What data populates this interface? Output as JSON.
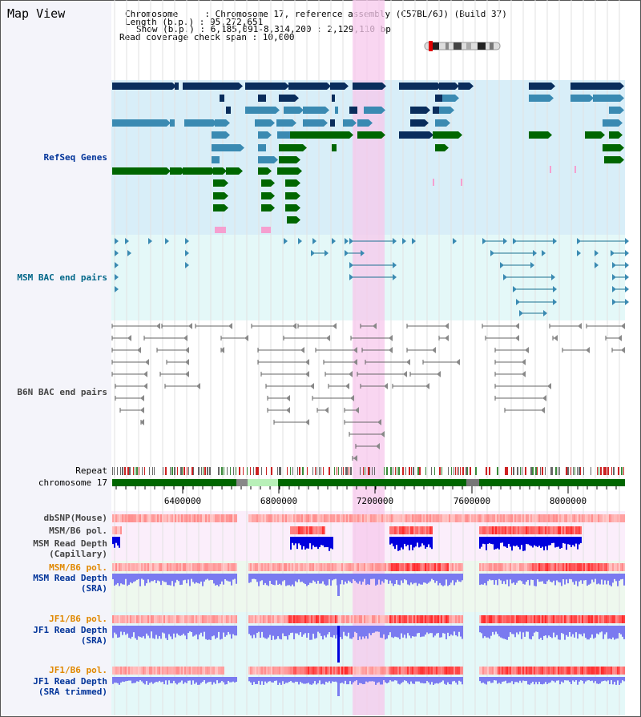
{
  "header": {
    "title": "Map View",
    "chromosome": "Chromosome     : Chromosome 17, reference assembly (C57BL/6J) (Build 37)",
    "length": "Length (b.p.) : 95,272,651",
    "show": "Show (b.p.) : 6,185,091-8,314,200 : 2,129,110 bp",
    "coverage": "Read coverage check span : 10,000"
  },
  "tracks": {
    "refseq": "RefSeq Genes",
    "msm_bac": "MSM BAC end pairs",
    "b6n_bac": "B6N BAC end pairs",
    "repeat": "Repeat",
    "chromosome": "chromosome 17",
    "dbsnp": "dbSNP(Mouse)",
    "msm_b6_pol": "MSM/B6 pol.",
    "msm_depth_cap_1": "MSM Read Depth",
    "msm_depth_cap_2": "(Capillary)",
    "msm_b6_pol2": "MSM/B6 pol.",
    "msm_depth_sra_1": "MSM Read Depth",
    "msm_depth_sra_2": "(SRA)",
    "jf1_b6_pol": "JF1/B6 pol.",
    "jf1_depth_sra_1": "JF1 Read Depth",
    "jf1_depth_sra_2": "(SRA)",
    "jf1_b6_pol2": "JF1/B6 pol.",
    "jf1_depth_trim_1": "JF1 Read Depth",
    "jf1_depth_trim_2": "(SRA trimmed)"
  },
  "axis": {
    "ticks": [
      "6400000",
      "6800000",
      "7200000",
      "7600000",
      "8000000"
    ]
  },
  "colors": {
    "refseq_bg": "#d8eef8",
    "msm_bg": "#e4f8f8",
    "highlight": "#f7d4f0",
    "gene_navy": "#0a2d5c",
    "gene_teal": "#3a8ab2",
    "gene_green": "#006600",
    "msm_line": "#1a7090",
    "b6n_line": "#666666",
    "chrom_green": "#006600",
    "depth_dark": "#0000dd",
    "depth_light": "#7a7af0",
    "label_navy": "#003399",
    "label_orange": "#e08800"
  }
}
